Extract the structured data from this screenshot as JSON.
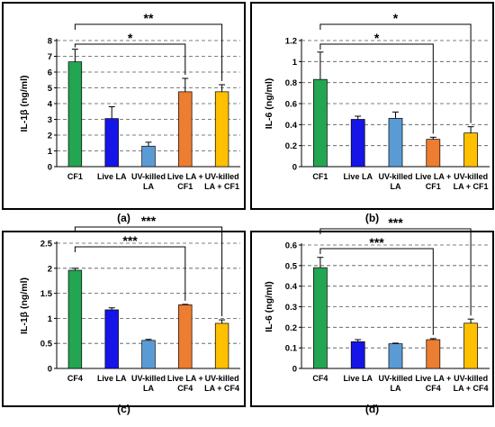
{
  "chart_data": [
    {
      "type": "bar",
      "panel_label": "(a)",
      "ylabel": "IL-1β (ng/ml)",
      "categories": [
        [
          "CF1"
        ],
        [
          "Live LA"
        ],
        [
          "UV-killed",
          "LA"
        ],
        [
          "Live LA +",
          "CF1"
        ],
        [
          "UV-killed",
          "LA + CF1"
        ]
      ],
      "values": [
        6.65,
        3.05,
        1.3,
        4.75,
        4.75
      ],
      "errors": [
        0.8,
        0.75,
        0.25,
        0.85,
        0.45
      ],
      "ylim": [
        0,
        8
      ],
      "yticks": [
        0,
        1,
        2,
        3,
        4,
        5,
        6,
        7,
        8
      ],
      "grid": true,
      "significance": [
        {
          "label": "**",
          "from": 0,
          "to": 4
        },
        {
          "label": "*",
          "from": 0,
          "to": 3
        }
      ]
    },
    {
      "type": "bar",
      "panel_label": "(b)",
      "ylabel": "IL-6 (ng/ml)",
      "categories": [
        [
          "CF1"
        ],
        [
          "Live LA"
        ],
        [
          "UV-killed",
          "LA"
        ],
        [
          "Live LA +",
          "CF1"
        ],
        [
          "UV-killed",
          "LA + CF1"
        ]
      ],
      "values": [
        0.83,
        0.45,
        0.46,
        0.26,
        0.32
      ],
      "errors": [
        0.26,
        0.03,
        0.06,
        0.02,
        0.06
      ],
      "ylim": [
        0,
        1.2
      ],
      "yticks": [
        0,
        0.2,
        0.4,
        0.6,
        0.8,
        1,
        1.2
      ],
      "grid": true,
      "significance": [
        {
          "label": "*",
          "from": 0,
          "to": 4
        },
        {
          "label": "*",
          "from": 0,
          "to": 3
        }
      ]
    },
    {
      "type": "bar",
      "panel_label": "(c)",
      "ylabel": "IL-1β (ng/ml)",
      "categories": [
        [
          "CF4"
        ],
        [
          "Live LA"
        ],
        [
          "UV-killed",
          "LA"
        ],
        [
          "Live LA +",
          "CF4"
        ],
        [
          "UV-killed",
          "LA + CF4"
        ]
      ],
      "values": [
        1.96,
        1.17,
        0.56,
        1.27,
        0.9
      ],
      "errors": [
        0.04,
        0.04,
        0.02,
        0.01,
        0.07
      ],
      "ylim": [
        0,
        2.5
      ],
      "yticks": [
        0,
        0.5,
        1,
        1.5,
        2,
        2.5
      ],
      "grid": true,
      "significance": [
        {
          "label": "***",
          "from": 0,
          "to": 4
        },
        {
          "label": "***",
          "from": 0,
          "to": 3
        }
      ]
    },
    {
      "type": "bar",
      "panel_label": "(d)",
      "ylabel": "IL-6 (ng/ml)",
      "categories": [
        [
          "CF4"
        ],
        [
          "Live LA"
        ],
        [
          "UV-killed",
          "LA"
        ],
        [
          "Live LA +",
          "CF4"
        ],
        [
          "UV-killed",
          "LA + CF4"
        ]
      ],
      "values": [
        0.49,
        0.13,
        0.12,
        0.14,
        0.22
      ],
      "errors": [
        0.05,
        0.01,
        0.003,
        0.005,
        0.02
      ],
      "ylim": [
        0,
        0.6
      ],
      "yticks": [
        0,
        0.1,
        0.2,
        0.3,
        0.4,
        0.5,
        0.6
      ],
      "grid": true,
      "significance": [
        {
          "label": "***",
          "from": 0,
          "to": 4
        },
        {
          "label": "***",
          "from": 0,
          "to": 3
        }
      ]
    }
  ],
  "colors": {
    "bars": [
      "#23a552",
      "#1515e8",
      "#5b9bd5",
      "#ed7d31",
      "#ffc000"
    ],
    "border": "#000000",
    "grid": "#555555"
  }
}
